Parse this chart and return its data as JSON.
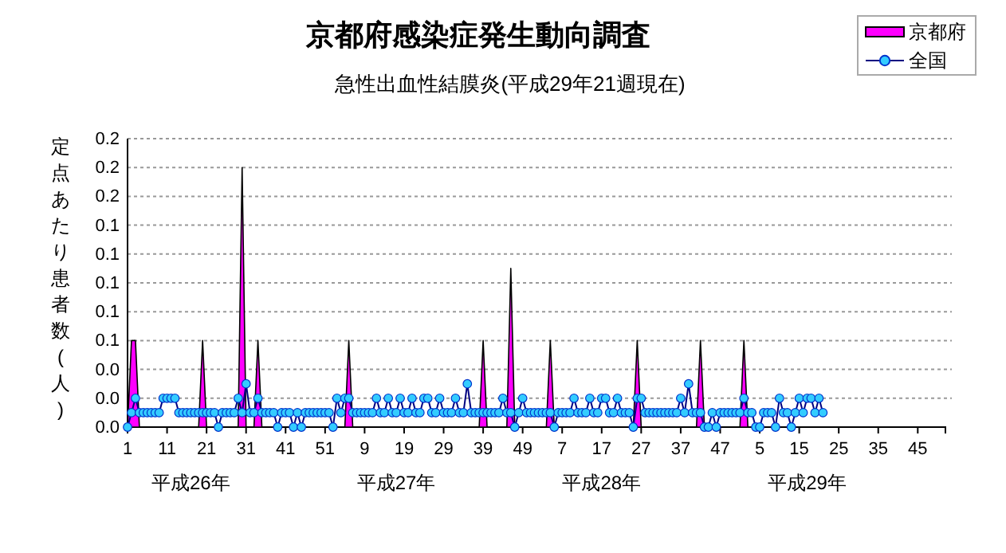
{
  "chart_data": {
    "type": "line",
    "title": "京都府感染症発生動向調査",
    "subtitle": "急性出血性結膜炎(平成29年21週現在)",
    "ylabel": "定点あたり患者数(人)",
    "categories": [
      "1",
      null,
      null,
      null,
      null,
      null,
      null,
      null,
      null,
      null,
      "11",
      null,
      null,
      null,
      null,
      null,
      null,
      null,
      null,
      null,
      "21",
      null,
      null,
      null,
      null,
      null,
      null,
      null,
      null,
      null,
      "31",
      null,
      null,
      null,
      null,
      null,
      null,
      null,
      null,
      null,
      "41",
      null,
      null,
      null,
      null,
      null,
      null,
      null,
      null,
      null,
      "51",
      null,
      null,
      null,
      null,
      null,
      null,
      null,
      null,
      null,
      "9",
      null,
      null,
      null,
      null,
      null,
      null,
      null,
      null,
      null,
      "19",
      null,
      null,
      null,
      null,
      null,
      null,
      null,
      null,
      null,
      "29",
      null,
      null,
      null,
      null,
      null,
      null,
      null,
      null,
      null,
      "39",
      null,
      null,
      null,
      null,
      null,
      null,
      null,
      null,
      null,
      "49",
      null,
      null,
      null,
      null,
      null,
      null,
      null,
      null,
      null,
      "7",
      null,
      null,
      null,
      null,
      null,
      null,
      null,
      null,
      null,
      "17",
      null,
      null,
      null,
      null,
      null,
      null,
      null,
      null,
      null,
      "27",
      null,
      null,
      null,
      null,
      null,
      null,
      null,
      null,
      null,
      "37",
      null,
      null,
      null,
      null,
      null,
      null,
      null,
      null,
      null,
      "47",
      null,
      null,
      null,
      null,
      null,
      null,
      null,
      null,
      null,
      "5",
      null,
      null,
      null,
      null,
      null,
      null,
      null,
      null,
      null,
      "15",
      null,
      null,
      null,
      null,
      null,
      null,
      null,
      null,
      null,
      "25",
      null,
      null,
      null,
      null,
      null,
      null,
      null,
      null,
      null,
      "35",
      null,
      null,
      null,
      null,
      null,
      null,
      null,
      null,
      null,
      "45",
      null,
      null,
      null,
      null,
      null,
      null,
      null
    ],
    "series": [
      {
        "name": "京都府",
        "type": "area",
        "marker": "none",
        "color": "#ff00ff",
        "values": [
          0,
          0.06,
          0.06,
          0,
          0,
          0,
          0,
          0,
          0,
          0,
          0,
          0,
          0,
          0,
          0,
          0,
          0,
          0,
          0,
          0.06,
          0,
          0,
          0,
          0,
          0,
          0,
          0,
          0,
          0,
          0.18,
          0,
          0,
          0,
          0.06,
          0,
          0,
          0,
          0,
          0,
          0,
          0,
          0,
          0,
          0,
          0,
          0,
          0,
          0,
          0,
          0,
          0,
          0,
          0,
          0,
          0,
          0,
          0.06,
          0,
          0,
          0,
          0,
          0,
          0,
          0,
          0,
          0,
          0,
          0,
          0,
          0,
          0,
          0,
          0,
          0,
          0,
          0,
          0,
          0,
          0,
          0,
          0,
          0,
          0,
          0,
          0,
          0,
          0,
          0,
          0,
          0,
          0.06,
          0,
          0,
          0,
          0,
          0,
          0,
          0.11,
          0,
          0,
          0,
          0,
          0,
          0,
          0,
          0,
          0,
          0.06,
          0,
          0,
          0,
          0,
          0,
          0,
          0,
          0,
          0,
          0,
          0,
          0,
          0,
          0,
          0,
          0,
          0,
          0,
          0,
          0,
          0,
          0.06,
          0,
          0,
          0,
          0,
          0,
          0,
          0,
          0,
          0,
          0,
          0,
          0,
          0,
          0,
          0,
          0.06,
          0,
          0,
          0,
          0,
          0,
          0,
          0,
          0,
          0,
          0,
          0.06,
          0,
          0,
          0,
          0,
          0,
          0,
          0,
          0,
          0,
          0,
          0,
          0,
          0,
          0,
          0,
          0,
          0,
          0,
          0,
          0,
          null,
          null,
          null,
          null,
          null,
          null,
          null,
          null,
          null,
          null,
          null,
          null,
          null,
          null,
          null,
          null,
          null,
          null,
          null,
          null,
          null,
          null,
          null,
          null,
          null,
          null,
          null,
          null,
          null,
          null,
          null
        ]
      },
      {
        "name": "全国",
        "type": "line",
        "color": "#33ccff",
        "values": [
          0,
          0.01,
          0.02,
          0.01,
          0.01,
          0.01,
          0.01,
          0.01,
          0.01,
          0.02,
          0.02,
          0.02,
          0.02,
          0.01,
          0.01,
          0.01,
          0.01,
          0.01,
          0.01,
          0.01,
          0.01,
          0.01,
          0.01,
          0,
          0.01,
          0.01,
          0.01,
          0.01,
          0.02,
          0.01,
          0.03,
          0.01,
          0.01,
          0.02,
          0.01,
          0.01,
          0.01,
          0.01,
          0,
          0.01,
          0.01,
          0.01,
          0,
          0.01,
          0,
          0.01,
          0.01,
          0.01,
          0.01,
          0.01,
          0.01,
          0.01,
          0,
          0.02,
          0.01,
          0.02,
          0.02,
          0.01,
          0.01,
          0.01,
          0.01,
          0.01,
          0.01,
          0.02,
          0.01,
          0.01,
          0.02,
          0.01,
          0.01,
          0.02,
          0.01,
          0.01,
          0.02,
          0.01,
          0.01,
          0.02,
          0.02,
          0.01,
          0.01,
          0.02,
          0.01,
          0.01,
          0.01,
          0.02,
          0.01,
          0.01,
          0.03,
          0.01,
          0.01,
          0.01,
          0.01,
          0.01,
          0.01,
          0.01,
          0.01,
          0.02,
          0.01,
          0.01,
          0,
          0.01,
          0.02,
          0.01,
          0.01,
          0.01,
          0.01,
          0.01,
          0.01,
          0.01,
          0,
          0.01,
          0.01,
          0.01,
          0.01,
          0.02,
          0.01,
          0.01,
          0.01,
          0.02,
          0.01,
          0.01,
          0.02,
          0.02,
          0.01,
          0.01,
          0.02,
          0.01,
          0.01,
          0.01,
          0,
          0.02,
          0.02,
          0.01,
          0.01,
          0.01,
          0.01,
          0.01,
          0.01,
          0.01,
          0.01,
          0.01,
          0.02,
          0.01,
          0.03,
          0.01,
          0.01,
          0.01,
          0,
          0,
          0.01,
          0,
          0.01,
          0.01,
          0.01,
          0.01,
          0.01,
          0.01,
          0.02,
          0.01,
          0.01,
          0,
          0,
          0.01,
          0.01,
          0.01,
          0,
          0.02,
          0.01,
          0.01,
          0,
          0.01,
          0.02,
          0.01,
          0.02,
          0.02,
          0.01,
          0.02,
          0.01,
          null,
          null,
          null,
          null,
          null,
          null,
          null,
          null,
          null,
          null,
          null,
          null,
          null,
          null,
          null,
          null,
          null,
          null,
          null,
          null,
          null,
          null,
          null,
          null,
          null,
          null,
          null,
          null,
          null,
          null,
          null
        ]
      }
    ],
    "ylim": [
      0,
      0.2
    ],
    "yticks": [
      {
        "value": 0,
        "label": "0.0"
      },
      {
        "value": 0.02,
        "label": "0.0"
      },
      {
        "value": 0.04,
        "label": "0.0"
      },
      {
        "value": 0.06,
        "label": "0.1"
      },
      {
        "value": 0.08,
        "label": "0.1"
      },
      {
        "value": 0.1,
        "label": "0.1"
      },
      {
        "value": 0.12,
        "label": "0.1"
      },
      {
        "value": 0.14,
        "label": "0.1"
      },
      {
        "value": 0.16,
        "label": "0.2"
      },
      {
        "value": 0.18,
        "label": "0.2"
      },
      {
        "value": 0.2,
        "label": "0.2"
      }
    ],
    "grid": "y",
    "legend": "top right",
    "marker": "circle",
    "annotations": [
      "平成26年",
      "平成27年",
      "平成28年",
      "平成29年"
    ]
  }
}
